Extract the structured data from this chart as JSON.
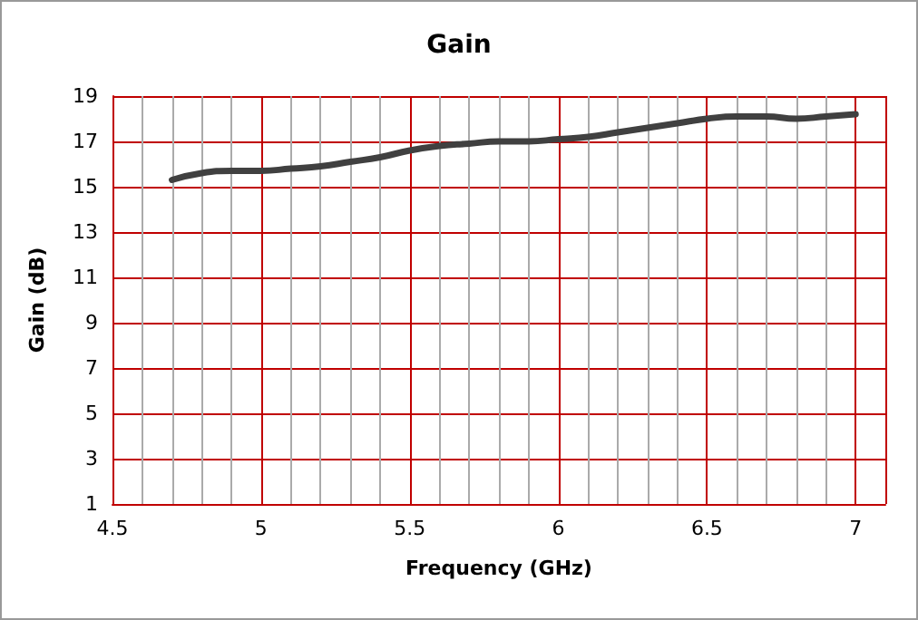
{
  "chart_data": {
    "type": "line",
    "title": "Gain",
    "xlabel": "Frequency (GHz)",
    "ylabel": "Gain (dB)",
    "x": [
      4.7,
      4.8,
      4.9,
      5.0,
      5.1,
      5.2,
      5.3,
      5.4,
      5.5,
      5.6,
      5.7,
      5.8,
      5.9,
      6.0,
      6.1,
      6.2,
      6.3,
      6.4,
      6.5,
      6.6,
      6.7,
      6.8,
      6.9,
      7.0
    ],
    "series": [
      {
        "color": "#404040",
        "values": [
          15.3,
          15.6,
          15.7,
          15.7,
          15.8,
          15.9,
          16.1,
          16.3,
          16.6,
          16.8,
          16.9,
          17.0,
          17.0,
          17.1,
          17.2,
          17.4,
          17.6,
          17.8,
          18.0,
          18.1,
          18.1,
          18.0,
          18.1,
          18.2
        ]
      }
    ],
    "xlim": [
      4.5,
      7.1
    ],
    "xticks": [
      4.5,
      5,
      5.5,
      6,
      6.5,
      7
    ],
    "ylim": [
      1,
      19
    ],
    "yticks": [
      1,
      3,
      5,
      7,
      9,
      11,
      13,
      15,
      17,
      19
    ],
    "grid": true,
    "marker": "none",
    "line_style": "solid"
  }
}
